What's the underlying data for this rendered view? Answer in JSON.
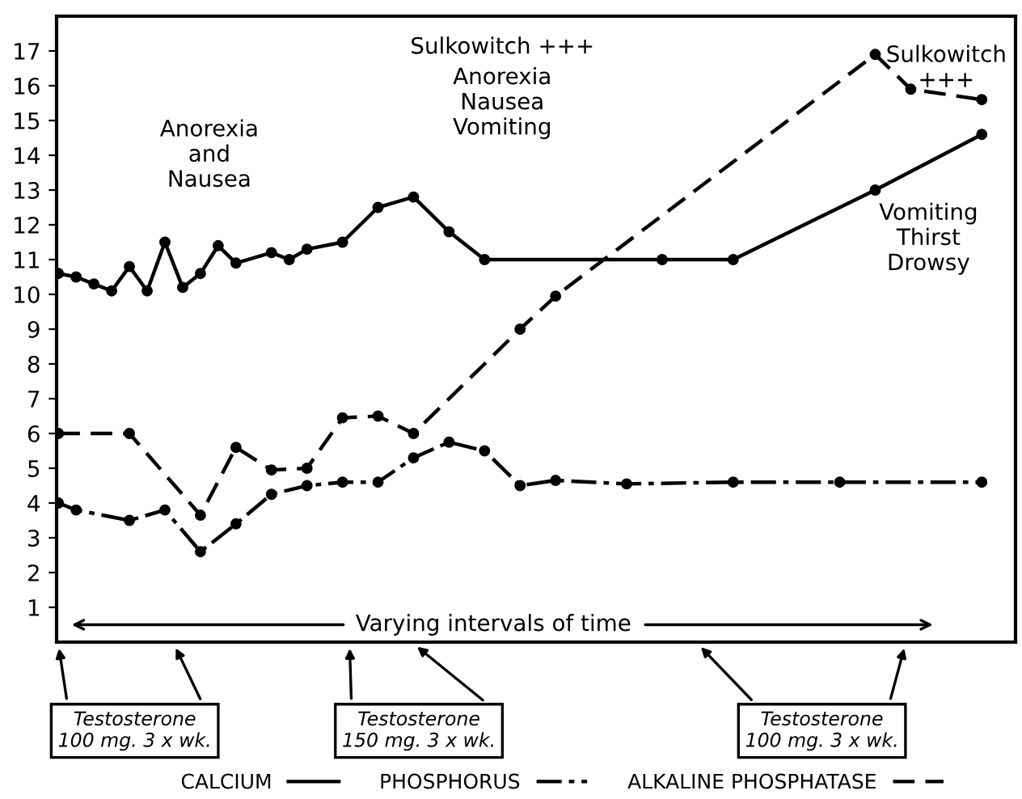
{
  "chart_data": {
    "type": "line",
    "categories": [
      null,
      null,
      null,
      null,
      null,
      null,
      null,
      null,
      null,
      null,
      null,
      null,
      null,
      null,
      null,
      null,
      null,
      null,
      null,
      null,
      null,
      null,
      null,
      null,
      null,
      null,
      null,
      null,
      null,
      null,
      null,
      null,
      null,
      null,
      null,
      null,
      null,
      null,
      null,
      null,
      null,
      null,
      null,
      null,
      null,
      null,
      null,
      null,
      null,
      null,
      null,
      null,
      null,
      null
    ],
    "series": [
      {
        "name": "CALCIUM",
        "color": "#000000",
        "line_style": "solid",
        "values": [
          10.6,
          10.5,
          10.3,
          10.1,
          10.8,
          10.1,
          11.5,
          10.2,
          10.6,
          11.4,
          10.9,
          null,
          11.2,
          11.0,
          11.3,
          null,
          11.5,
          null,
          12.5,
          null,
          12.8,
          null,
          11.8,
          null,
          11.0,
          null,
          null,
          null,
          null,
          null,
          null,
          null,
          null,
          null,
          11.0,
          null,
          null,
          null,
          11.0,
          null,
          null,
          null,
          null,
          null,
          null,
          null,
          13.0,
          null,
          null,
          null,
          null,
          null,
          14.6,
          null
        ]
      },
      {
        "name": "PHOSPHORUS",
        "color": "#000000",
        "line_style": "dashdot",
        "values": [
          4.0,
          3.8,
          null,
          null,
          3.5,
          null,
          3.8,
          null,
          2.6,
          null,
          3.4,
          null,
          4.25,
          null,
          4.5,
          null,
          4.6,
          null,
          4.6,
          null,
          5.3,
          null,
          5.75,
          null,
          5.5,
          null,
          4.5,
          null,
          4.65,
          null,
          null,
          null,
          4.55,
          null,
          null,
          null,
          null,
          null,
          4.6,
          null,
          null,
          null,
          null,
          null,
          4.6,
          null,
          null,
          null,
          null,
          null,
          null,
          null,
          4.6,
          null
        ]
      },
      {
        "name": "ALKALINE PHOSPHATASE",
        "color": "#000000",
        "line_style": "dashed",
        "values": [
          6.0,
          null,
          null,
          null,
          6.0,
          null,
          null,
          null,
          3.65,
          null,
          5.6,
          null,
          4.95,
          null,
          5.0,
          null,
          6.45,
          null,
          6.5,
          null,
          6.0,
          null,
          null,
          null,
          null,
          null,
          9.0,
          null,
          9.95,
          null,
          null,
          null,
          null,
          null,
          null,
          null,
          null,
          null,
          null,
          null,
          null,
          null,
          null,
          null,
          null,
          null,
          16.9,
          null,
          15.9,
          null,
          null,
          null,
          15.6,
          null
        ]
      }
    ],
    "ylim": [
      0,
      18
    ],
    "yticks": [
      1,
      2,
      3,
      4,
      5,
      6,
      7,
      8,
      9,
      10,
      11,
      12,
      13,
      14,
      15,
      16,
      17
    ],
    "tick_labels": "y",
    "grid": false,
    "legend": "bottom",
    "marker": "circle",
    "annotations": [
      "Anorexia\nand\nNausea",
      "Sulkowitch +++",
      "Anorexia\nNausea\nVomiting",
      "Sulkowitch\n+++",
      "Vomiting\nThirst\nDrowsy",
      "Varying intervals of time",
      "Testosterone\n100 mg. 3 x wk.",
      "Testosterone\n150 mg. 3 x wk.",
      "Testosterone\n100 mg. 3 x wk."
    ]
  }
}
